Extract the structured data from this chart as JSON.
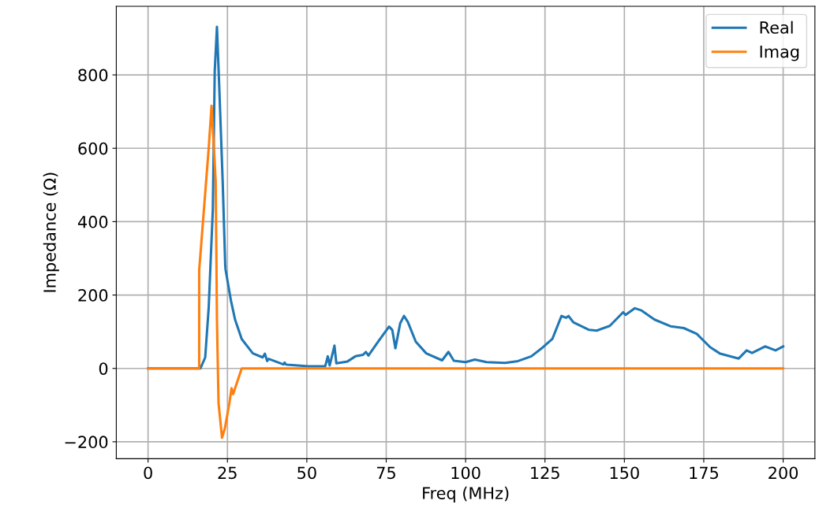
{
  "chart_data": {
    "type": "line",
    "xlabel": "Freq (MHz)",
    "ylabel": "Impedance (Ω)",
    "xlim": [
      -10,
      210
    ],
    "ylim": [
      -246,
      987
    ],
    "xticks": [
      0,
      25,
      50,
      75,
      100,
      125,
      150,
      175,
      200
    ],
    "yticks": [
      {
        "value": -200,
        "label": "−200"
      },
      0,
      200,
      400,
      600,
      800
    ],
    "grid": true,
    "legend": "top right",
    "series": [
      {
        "name": "Real",
        "color": "#1f77b4",
        "x": [
          0,
          16.5,
          18,
          19.1,
          20.4,
          21.0,
          21.7,
          22.4,
          23.5,
          24.3,
          24.4,
          26.1,
          27.4,
          29.5,
          33,
          36.1,
          36.8,
          37.5,
          38,
          42.6,
          43,
          43.4,
          43.8,
          50.4,
          55.8,
          56.6,
          57.2,
          58.7,
          59.3,
          62.8,
          65.3,
          67.7,
          68.6,
          69.4,
          72.7,
          75.9,
          76.9,
          77.9,
          79.4,
          80.6,
          81.8,
          84.3,
          87.6,
          92.6,
          94.6,
          96.3,
          100,
          102.9,
          106.6,
          112.4,
          116.5,
          120.7,
          124.4,
          127.3,
          130.2,
          131.6,
          132.4,
          133.9,
          138.9,
          141.3,
          145.4,
          149.6,
          150.4,
          153.3,
          155.4,
          159.5,
          164.5,
          168.7,
          172.8,
          177,
          180.2,
          186,
          188.5,
          190.2,
          194.3,
          197.6,
          200
        ],
        "values": [
          0,
          0,
          30,
          166,
          433,
          810,
          931,
          772,
          510,
          282,
          270,
          185,
          133,
          80,
          41,
          30,
          40,
          20,
          26,
          11,
          16,
          11,
          10,
          6,
          6,
          33,
          8,
          62,
          14,
          19,
          33,
          37,
          45,
          35,
          76,
          114,
          105,
          55,
          123,
          143,
          127,
          73,
          41,
          22,
          45,
          21,
          17,
          24,
          17,
          15,
          20,
          33,
          58,
          80,
          143,
          138,
          143,
          126,
          105,
          103,
          116,
          153,
          146,
          164,
          158,
          133,
          115,
          110,
          94,
          58,
          40,
          27,
          49,
          42,
          60,
          49,
          60
        ]
      },
      {
        "name": "Imag",
        "color": "#ff7f0e",
        "x": [
          0,
          16.1,
          16.1,
          19.1,
          20.0,
          21.3,
          21.7,
          22.2,
          23.3,
          24.2,
          25.6,
          26.3,
          26.8,
          29.5,
          200
        ],
        "values": [
          0,
          0,
          267,
          600,
          716,
          510,
          131,
          -95,
          -189,
          -163,
          -95,
          -54,
          -70,
          0,
          0
        ]
      }
    ]
  }
}
